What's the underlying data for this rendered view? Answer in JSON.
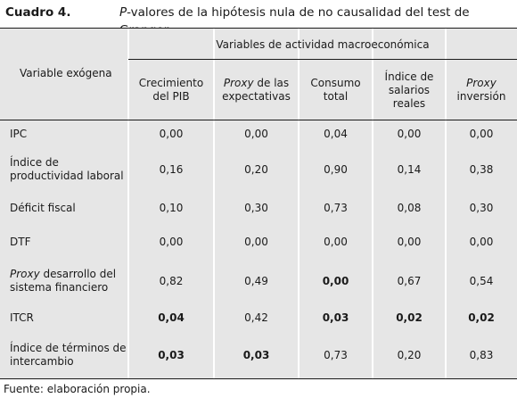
{
  "caption": {
    "number": "Cuadro 4.",
    "title_italic": "P",
    "title_rest": "-valores de la hipótesis nula de no causalidad del test de Granger"
  },
  "table": {
    "group_header": "Variables de actividad macroeconómica",
    "row_header": "Variable exógena",
    "columns": [
      {
        "line1_italic": "",
        "line1": "Crecimiento",
        "line2": "del PIB",
        "line3": ""
      },
      {
        "line1_italic": "Proxy",
        "line1": " de las",
        "line2": "expectativas",
        "line3": ""
      },
      {
        "line1_italic": "",
        "line1": "Consumo",
        "line2": "total",
        "line3": ""
      },
      {
        "line1_italic": "",
        "line1": "Índice de",
        "line2": "salarios",
        "line3": "reales"
      },
      {
        "line1_italic": "Proxy",
        "line1": "",
        "line2": "inversión",
        "line3": ""
      }
    ],
    "rows": [
      {
        "label_italic": "",
        "label1": "IPC",
        "label2": "",
        "values": [
          "0,00",
          "0,00",
          "0,04",
          "0,00",
          "0,00"
        ],
        "bold": [
          false,
          false,
          false,
          false,
          false
        ]
      },
      {
        "label_italic": "",
        "label1": "Índice de",
        "label2": "productividad laboral",
        "values": [
          "0,16",
          "0,20",
          "0,90",
          "0,14",
          "0,38"
        ],
        "bold": [
          false,
          false,
          false,
          false,
          false
        ]
      },
      {
        "label_italic": "",
        "label1": "Déficit fiscal",
        "label2": "",
        "values": [
          "0,10",
          "0,30",
          "0,73",
          "0,08",
          "0,30"
        ],
        "bold": [
          false,
          false,
          false,
          false,
          false
        ]
      },
      {
        "label_italic": "",
        "label1": "DTF",
        "label2": "",
        "values": [
          "0,00",
          "0,00",
          "0,00",
          "0,00",
          "0,00"
        ],
        "bold": [
          false,
          false,
          false,
          false,
          false
        ]
      },
      {
        "label_italic": "Proxy",
        "label1": " desarrollo del",
        "label2": "sistema financiero",
        "values": [
          "0,82",
          "0,49",
          "0,00",
          "0,67",
          "0,54"
        ],
        "bold": [
          false,
          false,
          true,
          false,
          false
        ]
      },
      {
        "label_italic": "",
        "label1": "ITCR",
        "label2": "",
        "values": [
          "0,04",
          "0,42",
          "0,03",
          "0,02",
          "0,02"
        ],
        "bold": [
          true,
          false,
          true,
          true,
          true
        ]
      },
      {
        "label_italic": "",
        "label1": "Índice de términos de",
        "label2": "intercambio",
        "values": [
          "0,03",
          "0,03",
          "0,73",
          "0,20",
          "0,83"
        ],
        "bold": [
          true,
          true,
          false,
          false,
          false
        ]
      }
    ]
  },
  "footnote": "Fuente: elaboración propia."
}
